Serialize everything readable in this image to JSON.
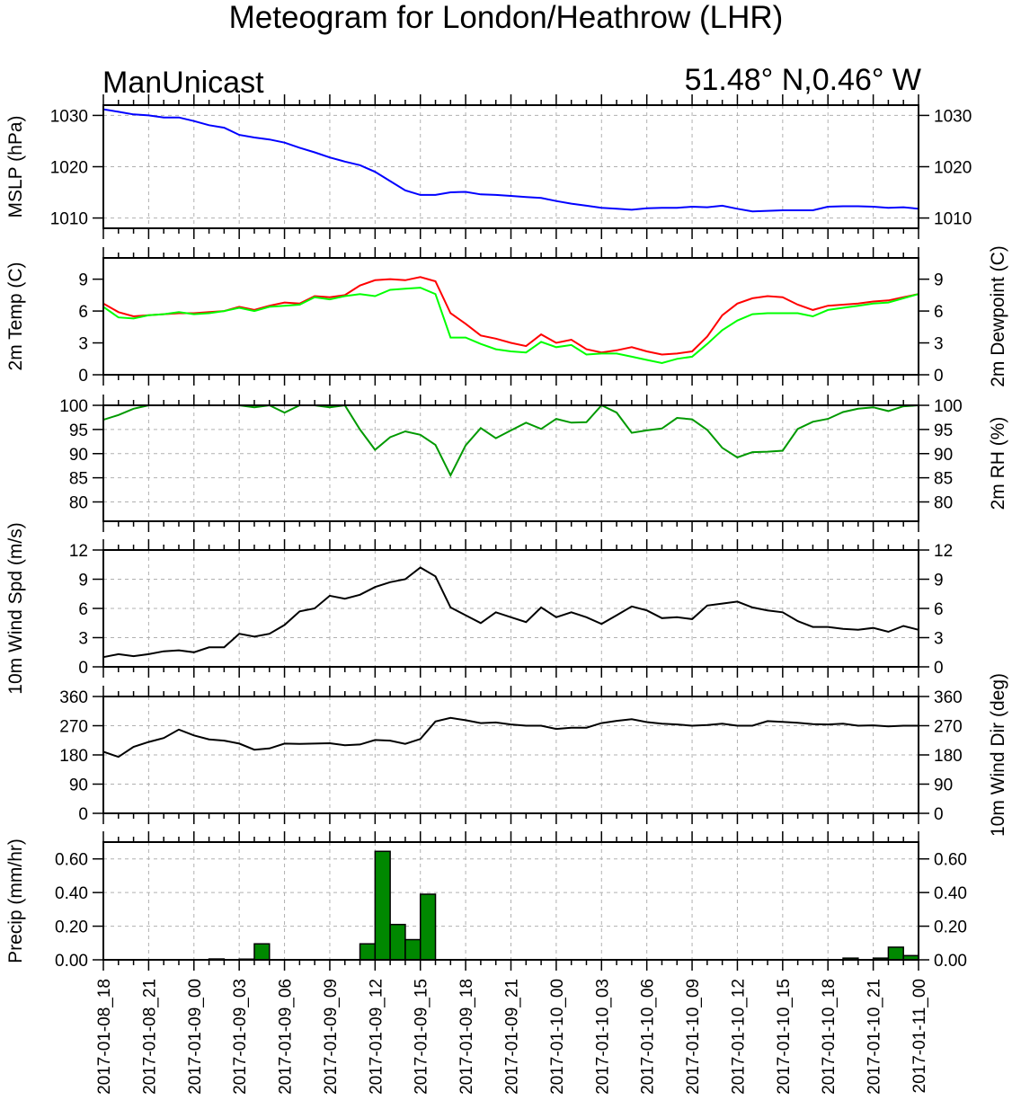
{
  "header": {
    "title": "Meteogram for London/Heathrow (LHR)",
    "model": "ManUnicast",
    "location": "51.48° N,0.46° W"
  },
  "colors": {
    "pressure": "#0000ff",
    "temperature": "#ff0000",
    "dewpoint": "#00ff00",
    "rh": "#009900",
    "wind": "#000000",
    "precip_fill": "#008800"
  },
  "chart_data": {
    "type": "line",
    "x_tick_labels": [
      "2017-01-08_18",
      "2017-01-08_21",
      "2017-01-09_00",
      "2017-01-09_03",
      "2017-01-09_06",
      "2017-01-09_09",
      "2017-01-09_12",
      "2017-01-09_15",
      "2017-01-09_18",
      "2017-01-09_21",
      "2017-01-10_00",
      "2017-01-10_03",
      "2017-01-10_06",
      "2017-01-10_09",
      "2017-01-10_12",
      "2017-01-10_15",
      "2017-01-10_18",
      "2017-01-10_21",
      "2017-01-11_00"
    ],
    "x_hours": [
      0,
      1,
      2,
      3,
      4,
      5,
      6,
      7,
      8,
      9,
      10,
      11,
      12,
      13,
      14,
      15,
      16,
      17,
      18,
      19,
      20,
      21,
      22,
      23,
      24,
      25,
      26,
      27,
      28,
      29,
      30,
      31,
      32,
      33,
      34,
      35,
      36,
      37,
      38,
      39,
      40,
      41,
      42,
      43,
      44,
      45,
      46,
      47,
      48,
      49,
      50,
      51,
      52,
      53,
      54
    ],
    "panels": [
      {
        "id": "mslp",
        "ylabel": "MSLP (hPa)",
        "ylim": [
          1008,
          1032
        ],
        "ticks": [
          1010,
          1020,
          1030
        ],
        "tick_labels": [
          "1010",
          "1020",
          "1030"
        ],
        "grid": true,
        "series": [
          {
            "color_key": "pressure",
            "values": [
              1031.2,
              1030.7,
              1030.2,
              1030.0,
              1029.6,
              1029.6,
              1028.9,
              1028.1,
              1027.6,
              1026.2,
              1025.7,
              1025.3,
              1024.7,
              1023.7,
              1022.8,
              1021.8,
              1021.0,
              1020.3,
              1019.0,
              1017.2,
              1015.4,
              1014.5,
              1014.5,
              1015.0,
              1015.1,
              1014.6,
              1014.5,
              1014.3,
              1014.1,
              1013.9,
              1013.3,
              1012.8,
              1012.4,
              1012.0,
              1011.8,
              1011.6,
              1011.9,
              1012.0,
              1012.0,
              1012.2,
              1012.1,
              1012.4,
              1011.8,
              1011.3,
              1011.4,
              1011.5,
              1011.5,
              1011.5,
              1012.2,
              1012.3,
              1012.3,
              1012.2,
              1012.0,
              1012.1,
              1011.8
            ]
          }
        ]
      },
      {
        "id": "temp",
        "ylabel": "2m Temp (C)",
        "ylabel_right": "2m Dewpoint (C)",
        "ylim": [
          0,
          11
        ],
        "ticks": [
          0,
          3,
          6,
          9
        ],
        "tick_labels": [
          "0",
          "3",
          "6",
          "9"
        ],
        "grid": false,
        "series": [
          {
            "color_key": "temperature",
            "values": [
              6.7,
              5.9,
              5.5,
              5.6,
              5.7,
              5.8,
              5.8,
              5.9,
              6.0,
              6.4,
              6.1,
              6.5,
              6.8,
              6.7,
              7.4,
              7.3,
              7.5,
              8.4,
              8.9,
              9.0,
              8.9,
              9.2,
              8.8,
              5.8,
              4.8,
              3.7,
              3.4,
              3.0,
              2.7,
              3.8,
              3.0,
              3.3,
              2.4,
              2.1,
              2.3,
              2.6,
              2.2,
              1.9,
              2.0,
              2.2,
              3.6,
              5.6,
              6.7,
              7.2,
              7.4,
              7.3,
              6.6,
              6.1,
              6.5,
              6.6,
              6.7,
              6.9,
              7.0,
              7.3,
              7.6
            ]
          },
          {
            "color_key": "dewpoint",
            "values": [
              6.4,
              5.4,
              5.3,
              5.6,
              5.7,
              5.9,
              5.7,
              5.8,
              6.0,
              6.3,
              6.0,
              6.4,
              6.5,
              6.6,
              7.3,
              7.1,
              7.4,
              7.6,
              7.4,
              8.0,
              8.1,
              8.2,
              7.6,
              3.5,
              3.5,
              2.9,
              2.4,
              2.2,
              2.1,
              3.1,
              2.6,
              2.8,
              1.9,
              2.0,
              2.0,
              1.7,
              1.4,
              1.1,
              1.5,
              1.7,
              2.9,
              4.2,
              5.1,
              5.7,
              5.8,
              5.8,
              5.8,
              5.5,
              6.1,
              6.3,
              6.5,
              6.7,
              6.8,
              7.2,
              7.6
            ]
          }
        ]
      },
      {
        "id": "rh",
        "ylabel": "",
        "ylabel_right": "2m RH (%)",
        "ylim": [
          76,
          100
        ],
        "ticks": [
          80,
          85,
          90,
          95,
          100
        ],
        "tick_labels": [
          "80",
          "85",
          "90",
          "95",
          "100"
        ],
        "grid": true,
        "series": [
          {
            "color_key": "rh",
            "values": [
              97.0,
              98.0,
              99.3,
              100,
              100,
              100,
              100,
              100,
              100,
              100,
              99.6,
              100,
              98.5,
              100,
              100,
              99.6,
              100,
              95.0,
              90.8,
              93.4,
              94.6,
              93.9,
              91.8,
              85.5,
              91.7,
              95.3,
              93.2,
              94.8,
              96.4,
              95.1,
              97.2,
              96.4,
              96.5,
              100,
              98.5,
              94.3,
              94.8,
              95.2,
              97.4,
              97.1,
              94.9,
              91.2,
              89.2,
              90.3,
              90.4,
              90.6,
              95.1,
              96.6,
              97.2,
              98.6,
              99.3,
              99.6,
              98.8,
              99.8,
              100
            ]
          }
        ]
      },
      {
        "id": "wspd",
        "ylabel": "10m Wind Spd (m/s)",
        "ylabel_right": "",
        "ylim": [
          0,
          12
        ],
        "ticks": [
          0,
          3,
          6,
          9,
          12
        ],
        "tick_labels": [
          "0",
          "3",
          "6",
          "9",
          "12"
        ],
        "grid": true,
        "series": [
          {
            "color_key": "wind",
            "values": [
              1.0,
              1.3,
              1.1,
              1.3,
              1.6,
              1.7,
              1.5,
              2.0,
              2.0,
              3.4,
              3.1,
              3.4,
              4.3,
              5.7,
              6.0,
              7.3,
              7.0,
              7.4,
              8.2,
              8.7,
              9.0,
              10.2,
              9.3,
              6.1,
              5.3,
              4.5,
              5.6,
              5.1,
              4.6,
              6.1,
              5.1,
              5.6,
              5.1,
              4.4,
              5.3,
              6.2,
              5.8,
              5.0,
              5.1,
              4.9,
              6.3,
              6.5,
              6.7,
              6.1,
              5.8,
              5.6,
              4.7,
              4.1,
              4.1,
              3.9,
              3.8,
              4.0,
              3.6,
              4.2,
              3.8
            ]
          }
        ]
      },
      {
        "id": "wdir",
        "ylabel": "",
        "ylabel_right": "10m Wind Dir (deg)",
        "ylim": [
          0,
          360
        ],
        "ticks": [
          0,
          90,
          180,
          270,
          360
        ],
        "tick_labels": [
          "0",
          "90",
          "180",
          "270",
          "360"
        ],
        "grid": true,
        "series": [
          {
            "color_key": "wind",
            "values": [
              190,
              174,
              205,
              220,
              232,
              258,
              240,
              228,
              224,
              215,
              196,
              200,
              215,
              214,
              215,
              216,
              210,
              212,
              226,
              224,
              214,
              229,
              283,
              294,
              287,
              278,
              280,
              274,
              270,
              270,
              260,
              264,
              264,
              278,
              285,
              290,
              281,
              276,
              274,
              270,
              272,
              276,
              270,
              270,
              284,
              282,
              279,
              275,
              274,
              276,
              270,
              271,
              268,
              270,
              270
            ]
          }
        ]
      },
      {
        "id": "precip",
        "type": "bar",
        "ylabel": "Precip (mm/hr)",
        "ylim": [
          0,
          0.7
        ],
        "ticks": [
          0,
          0.2,
          0.4,
          0.6
        ],
        "tick_labels": [
          "0.00",
          "0.20",
          "0.40",
          "0.60"
        ],
        "grid": true,
        "bars": [
          {
            "x": 7,
            "value": 0.005
          },
          {
            "x": 9,
            "value": 0.004
          },
          {
            "x": 10,
            "value": 0.095
          },
          {
            "x": 17,
            "value": 0.095
          },
          {
            "x": 18,
            "value": 0.645
          },
          {
            "x": 19,
            "value": 0.21
          },
          {
            "x": 20,
            "value": 0.12
          },
          {
            "x": 21,
            "value": 0.39
          },
          {
            "x": 49,
            "value": 0.01
          },
          {
            "x": 51,
            "value": 0.01
          },
          {
            "x": 52,
            "value": 0.075
          },
          {
            "x": 53,
            "value": 0.025
          }
        ]
      }
    ]
  }
}
